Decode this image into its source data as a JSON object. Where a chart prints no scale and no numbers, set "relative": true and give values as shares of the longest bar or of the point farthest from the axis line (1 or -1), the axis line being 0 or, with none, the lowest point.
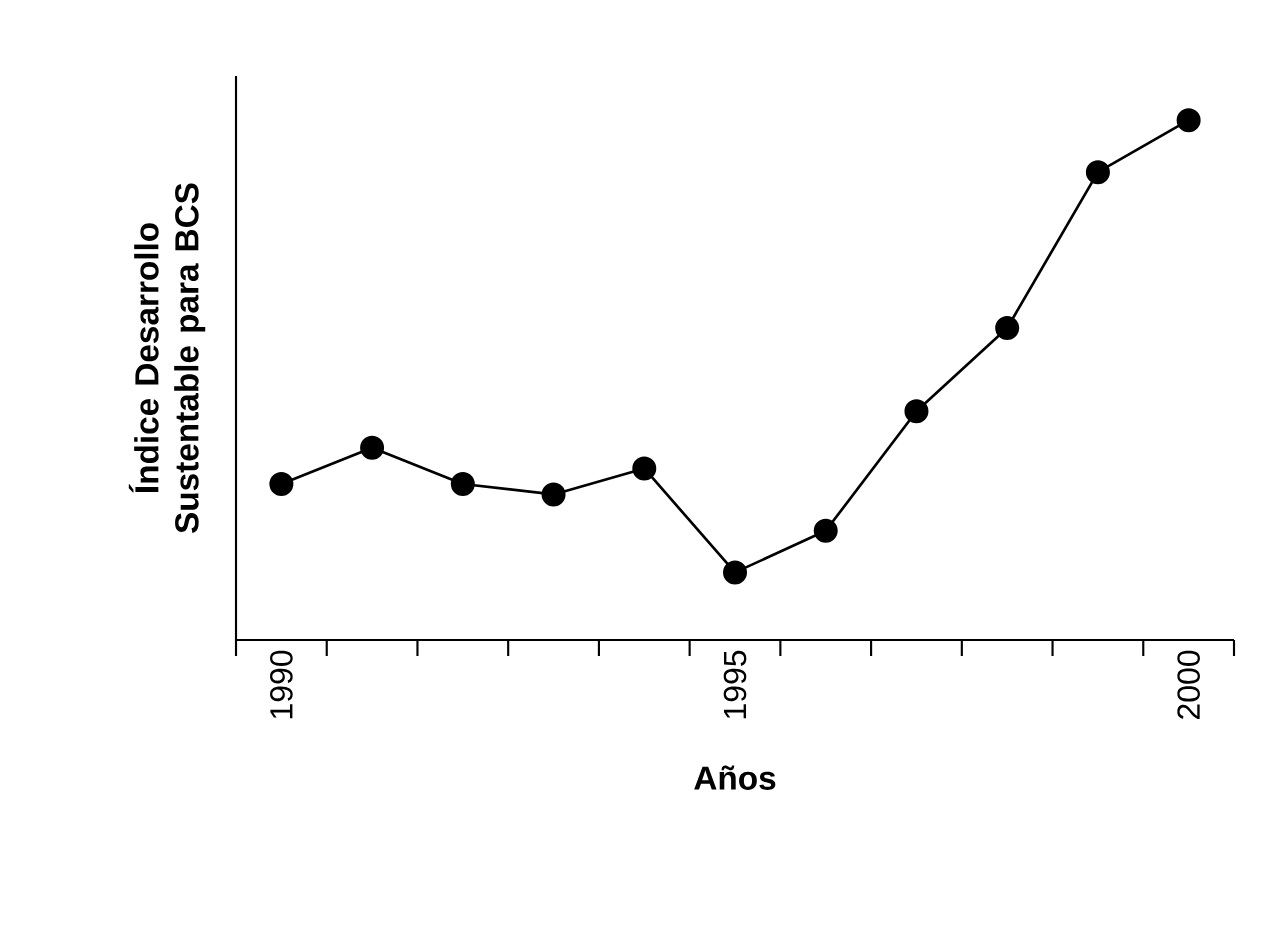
{
  "chart_data": {
    "type": "line",
    "xlabel": "Años",
    "ylabel": "Índice Desarrollo Sustentable para BCS",
    "categories": [
      "1990",
      null,
      null,
      null,
      null,
      "1995",
      null,
      null,
      null,
      null,
      "2000"
    ],
    "values": [
      0.3,
      0.37,
      0.3,
      0.28,
      0.33,
      0.13,
      0.21,
      0.44,
      0.6,
      0.9,
      1.0
    ],
    "color": "#000000",
    "relative": true,
    "marker": "circle",
    "line_style": "solid"
  }
}
